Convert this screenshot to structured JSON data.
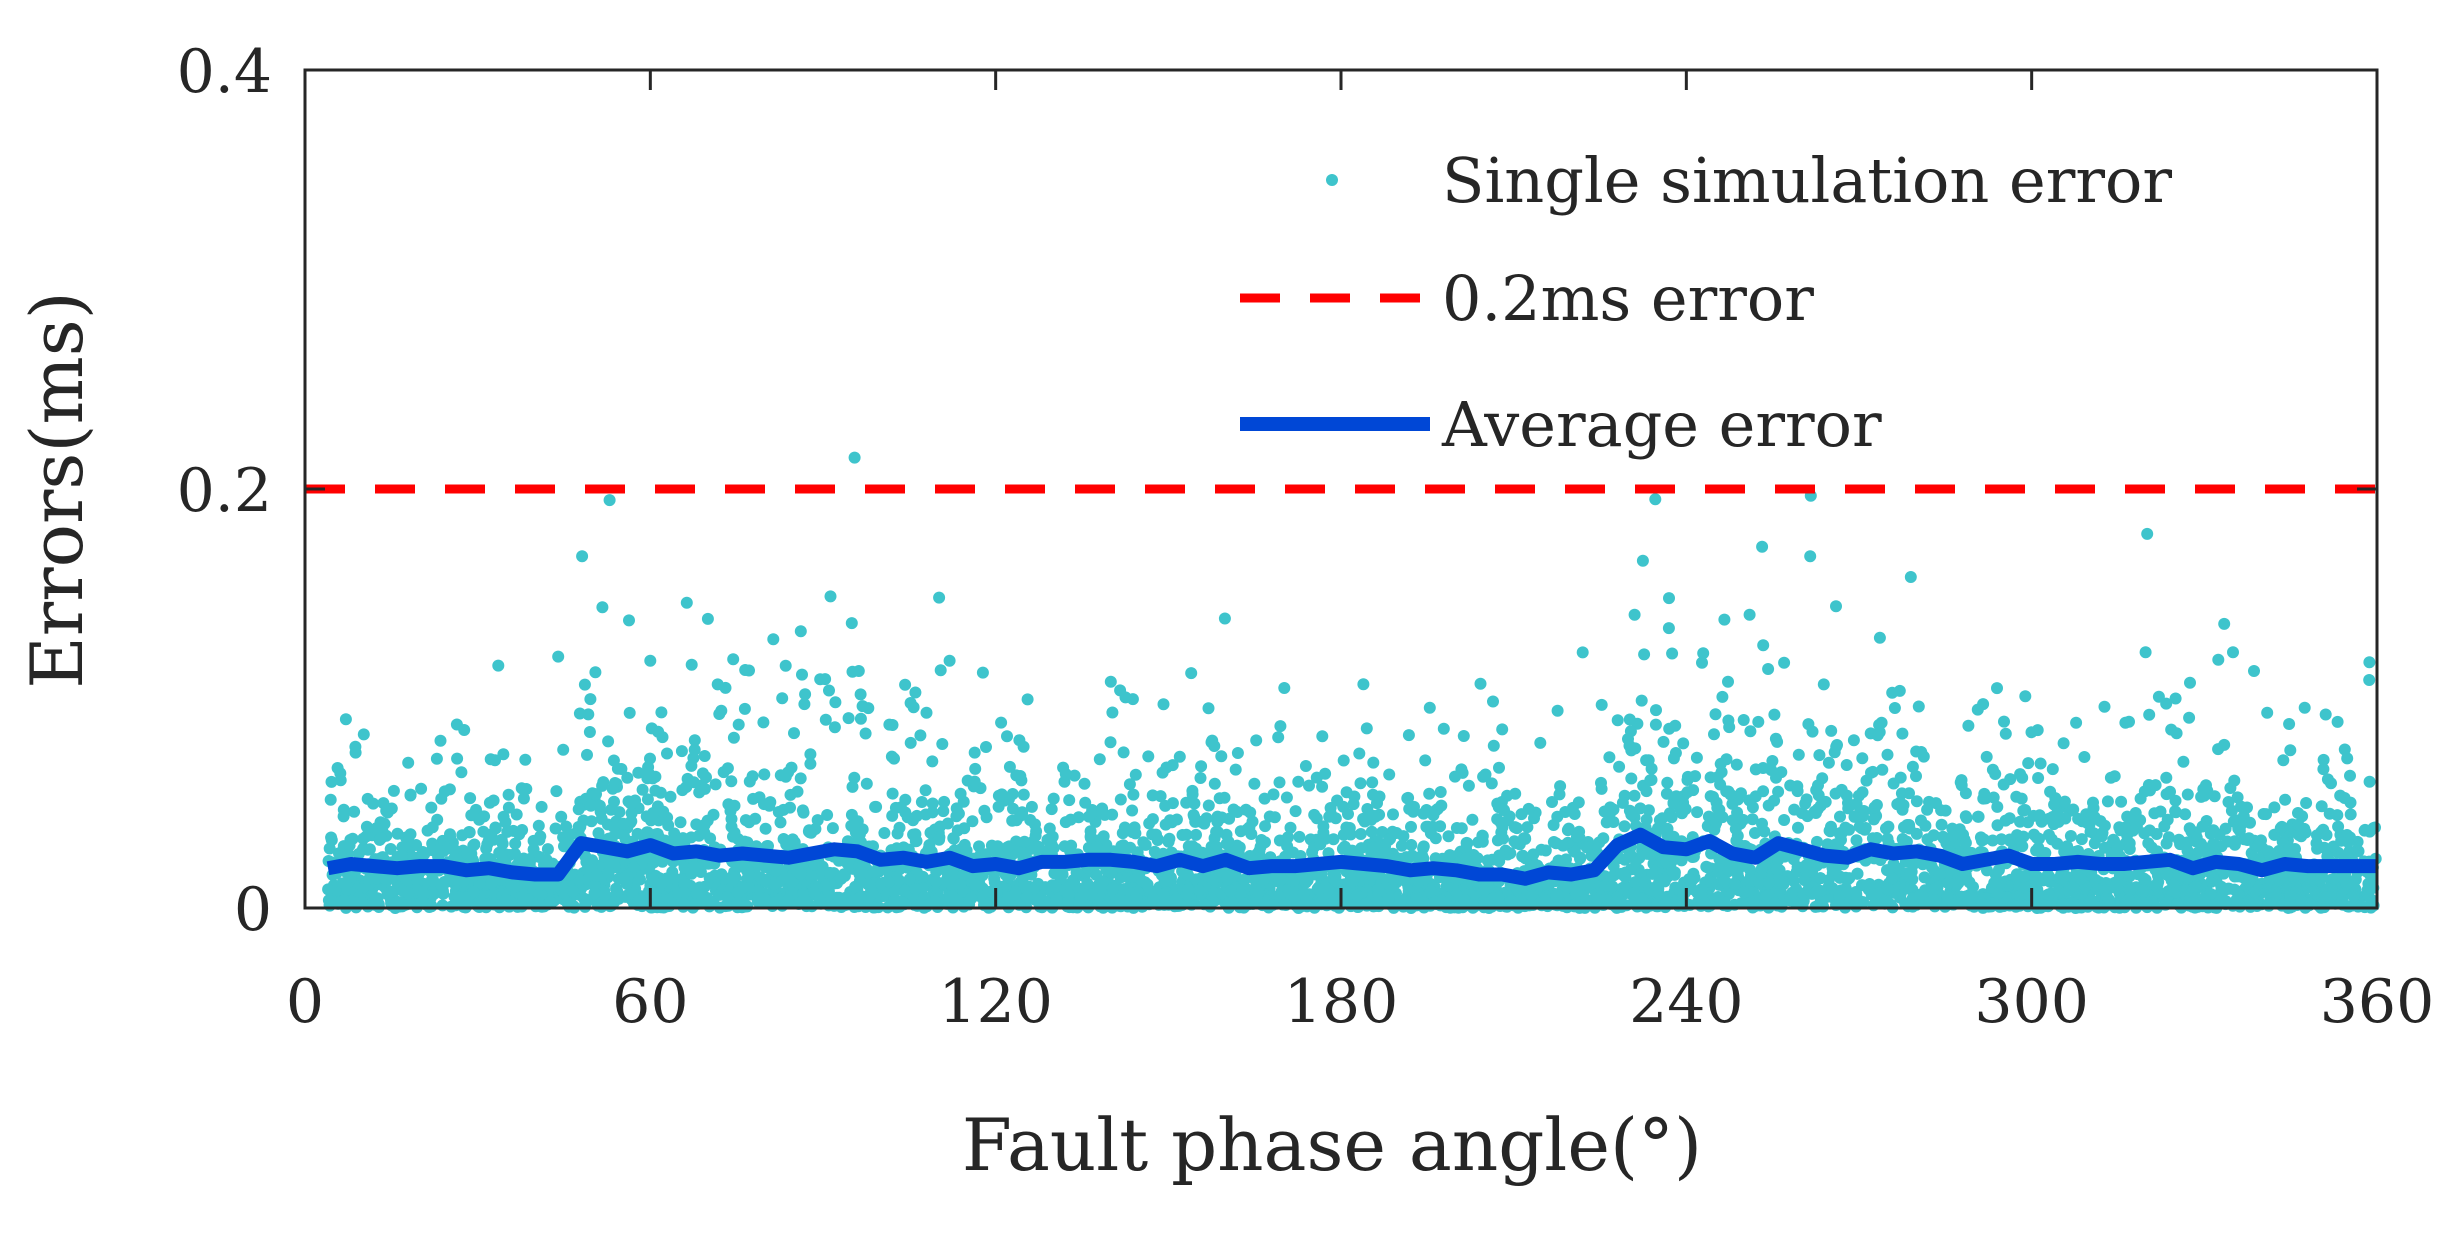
{
  "chart_data": {
    "type": "scatter",
    "title": "",
    "xlabel": "Fault phase angle(°)",
    "ylabel": "Errors(ms)",
    "xlim": [
      0,
      360
    ],
    "ylim": [
      0,
      0.4
    ],
    "xticks": [
      0,
      60,
      120,
      180,
      240,
      300,
      360
    ],
    "yticks": [
      0,
      0.2,
      0.4
    ],
    "xtick_labels": [
      "0",
      "60",
      "120",
      "180",
      "240",
      "300",
      "360"
    ],
    "ytick_labels": [
      "0",
      "0.2",
      "0.4"
    ],
    "legend": {
      "position": "top-right",
      "entries": [
        "Single simulation error",
        "0.2ms error",
        "Average error"
      ]
    },
    "colors": {
      "scatter": "#3ec4cc",
      "threshold": "#ff0000",
      "average": "#0047d6",
      "axis": "#262626"
    },
    "series": [
      {
        "name": "Single simulation error",
        "kind": "scatter",
        "note": "dense cloud of ~5000 points, generated from per-angle average and spread",
        "x_range": [
          4,
          360
        ],
        "notable_outliers": [
          {
            "x": 44,
            "y": 0.12
          },
          {
            "x": 60,
            "y": 0.118
          },
          {
            "x": 70,
            "y": 0.138
          },
          {
            "x": 95,
            "y": 0.136
          },
          {
            "x": 112,
            "y": 0.118
          },
          {
            "x": 140,
            "y": 0.108
          },
          {
            "x": 222,
            "y": 0.122
          },
          {
            "x": 251,
            "y": 0.14
          },
          {
            "x": 266,
            "y": 0.144
          },
          {
            "x": 279,
            "y": 0.158
          },
          {
            "x": 325,
            "y": 0.1
          }
        ]
      },
      {
        "name": "0.2ms error",
        "kind": "hline",
        "y": 0.2
      },
      {
        "name": "Average error",
        "kind": "line",
        "x": [
          4,
          8,
          12,
          16,
          20,
          24,
          28,
          32,
          36,
          40,
          44,
          48,
          52,
          56,
          60,
          64,
          68,
          72,
          76,
          80,
          84,
          88,
          92,
          96,
          100,
          104,
          108,
          112,
          116,
          120,
          124,
          128,
          132,
          136,
          140,
          144,
          148,
          152,
          156,
          160,
          164,
          168,
          172,
          176,
          180,
          184,
          188,
          192,
          196,
          200,
          204,
          208,
          212,
          216,
          220,
          224,
          228,
          232,
          236,
          240,
          244,
          248,
          252,
          256,
          260,
          264,
          268,
          272,
          276,
          280,
          284,
          288,
          292,
          296,
          300,
          304,
          308,
          312,
          316,
          320,
          324,
          328,
          332,
          336,
          340,
          344,
          348,
          352,
          356,
          360
        ],
        "y": [
          0.019,
          0.021,
          0.02,
          0.019,
          0.02,
          0.02,
          0.018,
          0.019,
          0.017,
          0.016,
          0.016,
          0.031,
          0.029,
          0.027,
          0.03,
          0.026,
          0.027,
          0.025,
          0.026,
          0.025,
          0.024,
          0.026,
          0.028,
          0.027,
          0.023,
          0.024,
          0.022,
          0.024,
          0.02,
          0.021,
          0.019,
          0.022,
          0.022,
          0.023,
          0.023,
          0.022,
          0.02,
          0.023,
          0.02,
          0.023,
          0.019,
          0.02,
          0.02,
          0.021,
          0.022,
          0.021,
          0.02,
          0.018,
          0.019,
          0.018,
          0.016,
          0.016,
          0.014,
          0.017,
          0.016,
          0.018,
          0.03,
          0.035,
          0.029,
          0.028,
          0.032,
          0.026,
          0.024,
          0.031,
          0.028,
          0.025,
          0.024,
          0.028,
          0.026,
          0.027,
          0.025,
          0.021,
          0.023,
          0.025,
          0.021,
          0.021,
          0.022,
          0.021,
          0.021,
          0.022,
          0.023,
          0.019,
          0.022,
          0.021,
          0.018,
          0.021,
          0.02,
          0.02,
          0.02,
          0.02
        ]
      }
    ]
  }
}
